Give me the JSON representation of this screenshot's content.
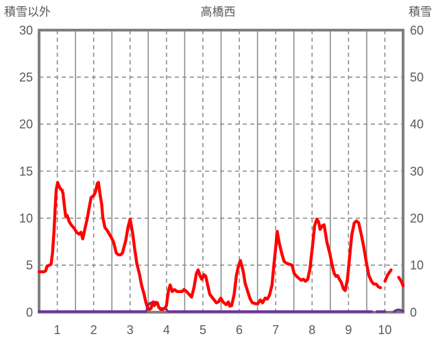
{
  "header": {
    "left_axis_title": "積雪以外",
    "station_title": "高橋西",
    "right_axis_title": "積雪"
  },
  "colors": {
    "non_snow_line": "#ff0000",
    "snow_line": "#7030a0",
    "plot_border": "#808080",
    "gridline": "#8c8c8c",
    "label_text": "#595959",
    "background": "#ffffff"
  },
  "chart_data": {
    "type": "line",
    "title": "高橋西",
    "x_axis": {
      "range": [
        0.5,
        10.5
      ],
      "ticks": [
        1,
        2,
        3,
        4,
        5,
        6,
        7,
        8,
        9,
        10
      ],
      "minor_gridlines": [
        1.5,
        2.5,
        3.5,
        4.5,
        5.5,
        6.5,
        7.5,
        8.5,
        9.5
      ]
    },
    "left_axis": {
      "title": "積雪以外",
      "range": [
        0,
        30
      ],
      "ticks": [
        30,
        25,
        20,
        15,
        10,
        5,
        0
      ],
      "gridlines": [
        25,
        20,
        15,
        10,
        5
      ]
    },
    "right_axis": {
      "title": "積雪",
      "range": [
        0,
        60
      ],
      "ticks": [
        60,
        50,
        40,
        30,
        20,
        10,
        0
      ]
    },
    "grid": {
      "horizontal": "dashed",
      "vertical_major": "dashed",
      "vertical_minor": "solid"
    },
    "legend": "none",
    "series": [
      {
        "name": "積雪",
        "axis": "right",
        "color": "#7030a0",
        "stroke_width": 3.4,
        "segments": [
          [
            [
              0.5,
              0.15
            ],
            [
              3.44,
              0.15
            ],
            [
              3.5,
              1.5
            ],
            [
              3.54,
              1.9
            ],
            [
              3.58,
              2.0
            ],
            [
              3.62,
              2.1
            ],
            [
              3.66,
              1.4
            ],
            [
              3.7,
              2.0
            ],
            [
              3.74,
              2.1
            ],
            [
              3.78,
              1.2
            ],
            [
              3.82,
              0.9
            ],
            [
              3.88,
              0.8
            ],
            [
              3.94,
              0.8
            ],
            [
              3.99,
              0.7
            ],
            [
              4.03,
              0.2
            ],
            [
              4.08,
              0.15
            ],
            [
              9.64,
              0.15
            ]
          ],
          [
            [
              9.78,
              0.15
            ],
            [
              10.0,
              0.15
            ]
          ],
          [
            [
              10.25,
              0.15
            ],
            [
              10.33,
              0.5
            ],
            [
              10.42,
              0.5
            ],
            [
              10.5,
              0.2
            ]
          ]
        ]
      },
      {
        "name": "積雪以外",
        "axis": "left",
        "color": "#ff0000",
        "stroke_width": 4.4,
        "segments": [
          [
            [
              0.5,
              4.3
            ],
            [
              0.57,
              4.3
            ],
            [
              0.63,
              4.3
            ],
            [
              0.68,
              4.4
            ],
            [
              0.72,
              4.9
            ],
            [
              0.78,
              5.0
            ],
            [
              0.83,
              5.1
            ],
            [
              0.87,
              6.3
            ],
            [
              0.91,
              8.6
            ],
            [
              0.94,
              11.0
            ],
            [
              0.97,
              13.0
            ],
            [
              1.01,
              13.8
            ],
            [
              1.05,
              13.4
            ],
            [
              1.09,
              13.1
            ],
            [
              1.13,
              13.0
            ],
            [
              1.16,
              12.6
            ],
            [
              1.19,
              11.5
            ],
            [
              1.23,
              10.2
            ],
            [
              1.27,
              10.3
            ],
            [
              1.33,
              9.6
            ],
            [
              1.4,
              9.2
            ],
            [
              1.47,
              8.9
            ],
            [
              1.53,
              8.5
            ],
            [
              1.6,
              8.3
            ],
            [
              1.65,
              8.5
            ],
            [
              1.7,
              7.8
            ],
            [
              1.75,
              8.7
            ],
            [
              1.82,
              9.9
            ],
            [
              1.88,
              11.2
            ],
            [
              1.93,
              12.2
            ],
            [
              2.0,
              12.4
            ],
            [
              2.05,
              12.8
            ],
            [
              2.1,
              13.7
            ],
            [
              2.13,
              13.8
            ],
            [
              2.18,
              12.4
            ],
            [
              2.22,
              11.5
            ],
            [
              2.25,
              10.1
            ],
            [
              2.31,
              9.0
            ],
            [
              2.37,
              8.7
            ],
            [
              2.43,
              8.3
            ],
            [
              2.49,
              7.9
            ],
            [
              2.55,
              7.4
            ],
            [
              2.62,
              6.3
            ],
            [
              2.68,
              6.1
            ],
            [
              2.74,
              6.1
            ],
            [
              2.79,
              6.3
            ],
            [
              2.88,
              7.6
            ],
            [
              2.94,
              9.0
            ],
            [
              3.0,
              9.9
            ],
            [
              3.07,
              8.4
            ],
            [
              3.13,
              6.6
            ],
            [
              3.19,
              5.1
            ],
            [
              3.26,
              4.0
            ],
            [
              3.32,
              2.8
            ],
            [
              3.38,
              2.0
            ],
            [
              3.43,
              1.1
            ],
            [
              3.48,
              0.5
            ],
            [
              3.53,
              0.3
            ],
            [
              3.58,
              0.4
            ],
            [
              3.61,
              1.0
            ],
            [
              3.64,
              1.1
            ],
            [
              3.67,
              0.7
            ],
            [
              3.71,
              1.05
            ],
            [
              3.75,
              1.0
            ],
            [
              3.79,
              0.5
            ],
            [
              3.84,
              0.3
            ],
            [
              3.9,
              0.3
            ],
            [
              3.95,
              0.4
            ],
            [
              4.0,
              0.7
            ],
            [
              4.05,
              2.2
            ],
            [
              4.1,
              2.9
            ],
            [
              4.16,
              2.2
            ],
            [
              4.22,
              2.4
            ],
            [
              4.29,
              2.2
            ],
            [
              4.36,
              2.2
            ],
            [
              4.43,
              2.2
            ],
            [
              4.48,
              2.4
            ],
            [
              4.55,
              2.2
            ],
            [
              4.62,
              1.9
            ],
            [
              4.69,
              1.6
            ],
            [
              4.76,
              2.7
            ],
            [
              4.82,
              4.1
            ],
            [
              4.87,
              4.5
            ],
            [
              4.92,
              3.9
            ],
            [
              4.97,
              3.5
            ],
            [
              5.03,
              4.0
            ],
            [
              5.08,
              3.8
            ],
            [
              5.13,
              2.9
            ],
            [
              5.19,
              1.9
            ],
            [
              5.25,
              1.6
            ],
            [
              5.31,
              1.3
            ],
            [
              5.37,
              1.0
            ],
            [
              5.43,
              1.1
            ],
            [
              5.49,
              1.5
            ],
            [
              5.55,
              1.1
            ],
            [
              5.61,
              0.9
            ],
            [
              5.64,
              0.8
            ],
            [
              5.7,
              1.1
            ],
            [
              5.74,
              0.65
            ],
            [
              5.79,
              0.7
            ],
            [
              5.86,
              1.9
            ],
            [
              5.92,
              3.9
            ],
            [
              5.97,
              4.8
            ],
            [
              6.03,
              5.5
            ],
            [
              6.11,
              4.3
            ],
            [
              6.16,
              3.1
            ],
            [
              6.24,
              2.1
            ],
            [
              6.3,
              1.4
            ],
            [
              6.36,
              1.0
            ],
            [
              6.45,
              0.9
            ],
            [
              6.51,
              0.9
            ],
            [
              6.58,
              1.3
            ],
            [
              6.64,
              1.0
            ],
            [
              6.71,
              1.5
            ],
            [
              6.77,
              1.4
            ],
            [
              6.83,
              1.8
            ],
            [
              6.9,
              2.9
            ],
            [
              6.95,
              5.0
            ],
            [
              7.0,
              6.8
            ],
            [
              7.04,
              8.6
            ],
            [
              7.1,
              7.3
            ],
            [
              7.17,
              6.2
            ],
            [
              7.23,
              5.4
            ],
            [
              7.3,
              5.2
            ],
            [
              7.38,
              5.1
            ],
            [
              7.45,
              5.0
            ],
            [
              7.51,
              4.1
            ],
            [
              7.58,
              3.8
            ],
            [
              7.64,
              3.6
            ],
            [
              7.7,
              3.4
            ],
            [
              7.76,
              3.5
            ],
            [
              7.82,
              3.3
            ],
            [
              7.88,
              3.5
            ],
            [
              7.94,
              4.6
            ],
            [
              8.01,
              7.0
            ],
            [
              8.07,
              9.2
            ],
            [
              8.13,
              9.9
            ],
            [
              8.18,
              9.6
            ],
            [
              8.22,
              8.8
            ],
            [
              8.28,
              9.2
            ],
            [
              8.33,
              9.3
            ],
            [
              8.41,
              7.4
            ],
            [
              8.49,
              6.2
            ],
            [
              8.55,
              5.0
            ],
            [
              8.61,
              4.1
            ],
            [
              8.66,
              3.8
            ],
            [
              8.7,
              3.9
            ],
            [
              8.75,
              3.5
            ],
            [
              8.8,
              3.2
            ],
            [
              8.86,
              2.5
            ],
            [
              8.91,
              2.3
            ],
            [
              8.97,
              3.5
            ],
            [
              9.03,
              5.8
            ],
            [
              9.09,
              8.2
            ],
            [
              9.16,
              9.5
            ],
            [
              9.22,
              9.7
            ],
            [
              9.28,
              9.5
            ],
            [
              9.35,
              8.3
            ],
            [
              9.42,
              6.9
            ],
            [
              9.49,
              5.3
            ],
            [
              9.56,
              3.9
            ],
            [
              9.63,
              3.3
            ],
            [
              9.69,
              3.0
            ],
            [
              9.76,
              3.0
            ],
            [
              9.82,
              2.7
            ],
            [
              9.88,
              2.6
            ]
          ],
          [
            [
              10.0,
              3.3
            ],
            [
              10.08,
              4.0
            ],
            [
              10.17,
              4.5
            ]
          ],
          [
            [
              10.38,
              3.7
            ],
            [
              10.45,
              3.3
            ],
            [
              10.5,
              2.8
            ]
          ]
        ]
      }
    ]
  }
}
